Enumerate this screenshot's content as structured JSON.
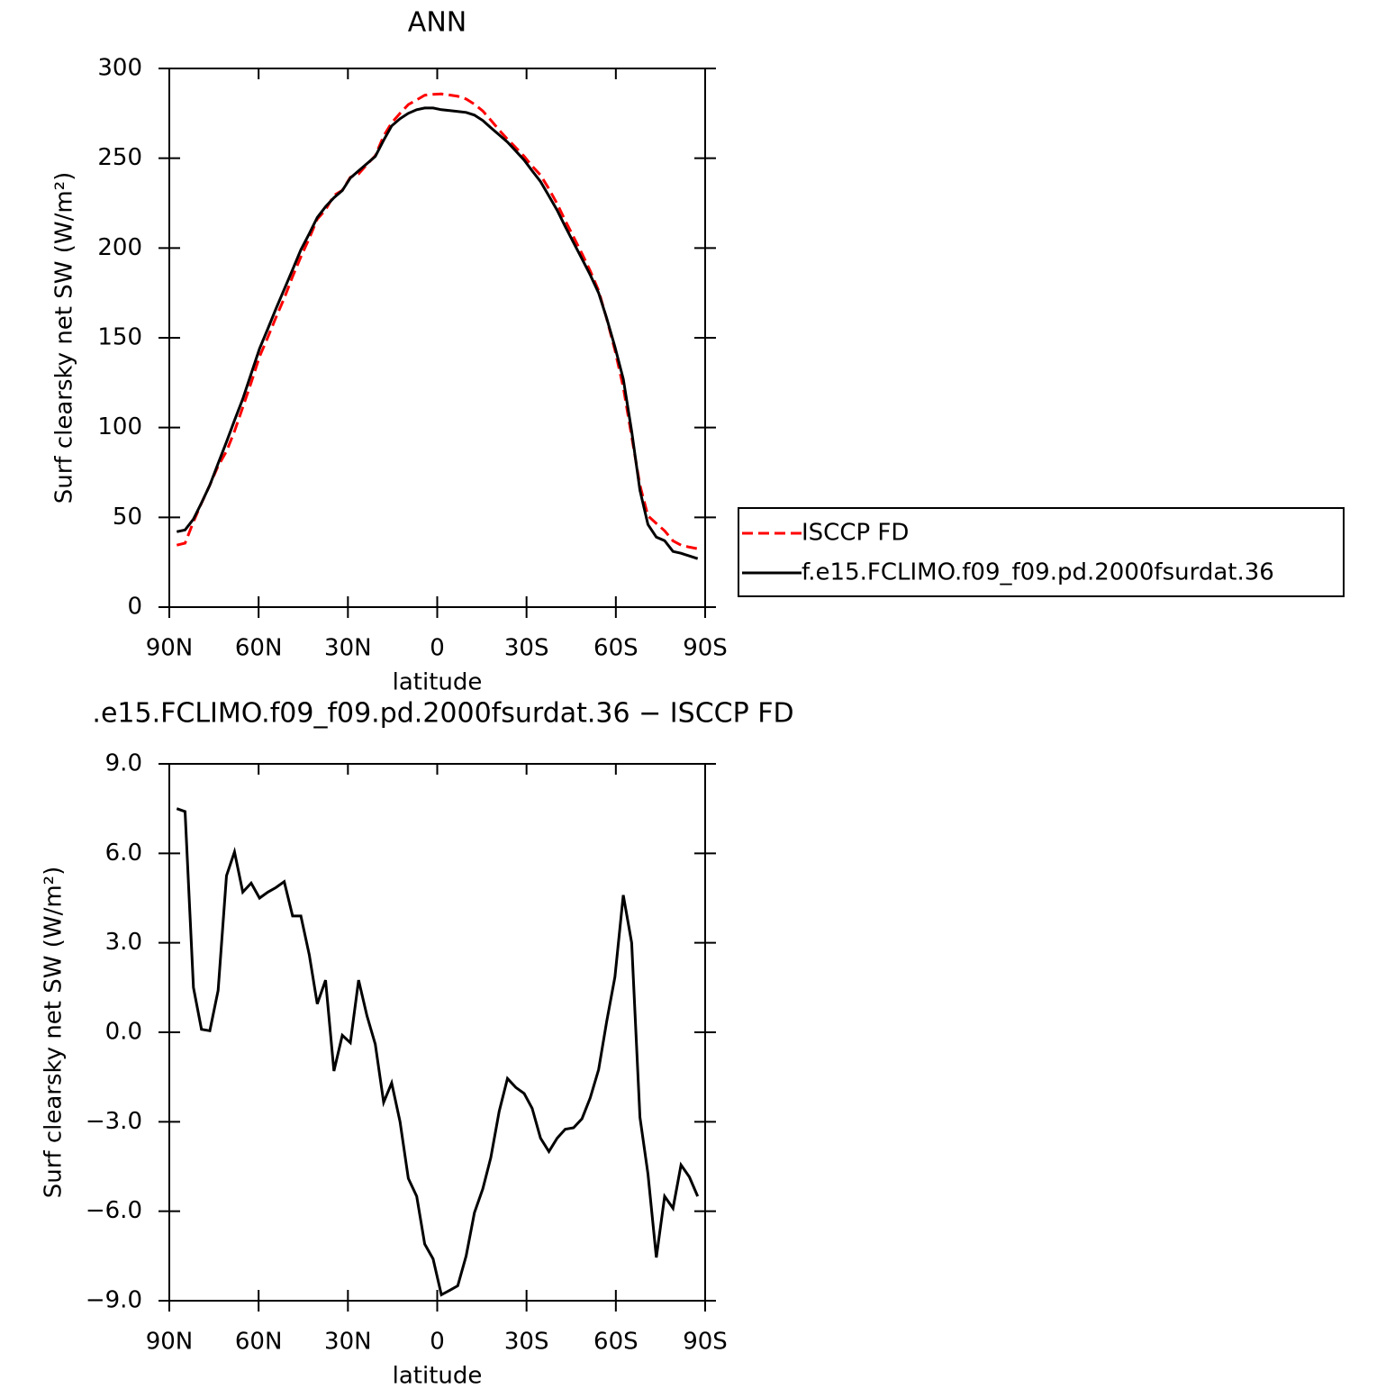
{
  "chart_data": [
    {
      "type": "line",
      "title": "ANN",
      "xlabel": "latitude",
      "ylabel": "Surf clearsky net SW (W/m²)",
      "x": [
        87.5,
        84.7,
        81.9,
        79.2,
        76.4,
        73.6,
        70.8,
        68.1,
        65.3,
        62.5,
        59.7,
        56.9,
        54.2,
        51.4,
        48.6,
        45.8,
        43.0,
        40.3,
        37.5,
        34.7,
        31.9,
        29.2,
        26.4,
        23.6,
        20.8,
        18.0,
        15.3,
        12.5,
        9.7,
        6.9,
        4.2,
        1.4,
        -1.4,
        -4.2,
        -6.9,
        -9.7,
        -12.5,
        -15.3,
        -18.0,
        -20.8,
        -23.6,
        -26.4,
        -29.2,
        -31.9,
        -34.7,
        -37.5,
        -40.3,
        -43.0,
        -45.8,
        -48.6,
        -51.4,
        -54.2,
        -56.9,
        -59.7,
        -62.5,
        -65.3,
        -68.1,
        -70.8,
        -73.6,
        -76.4,
        -79.2,
        -81.9,
        -84.7,
        -87.5
      ],
      "series": [
        {
          "name": "ISCCP FD",
          "color": "#ff0000",
          "dashed": true,
          "values": [
            34.5,
            35.6,
            47.5,
            57.9,
            68.0,
            78.6,
            86.8,
            98.0,
            111.3,
            125.0,
            139.5,
            150.3,
            161.2,
            172.0,
            184.1,
            195.1,
            205.4,
            216.1,
            221.3,
            229.3,
            232.1,
            239.4,
            241.3,
            246.5,
            251.4,
            262.4,
            269.7,
            275.0,
            279.9,
            282.5,
            285.1,
            285.6,
            285.8,
            285.2,
            284.5,
            283.0,
            280.1,
            276.3,
            271.2,
            265.7,
            260.6,
            255.9,
            251.1,
            245.6,
            240.6,
            233.0,
            224.6,
            215.3,
            206.2,
            196.9,
            187.2,
            176.3,
            160.7,
            143.2,
            122.4,
            95.0,
            67.9,
            50.8,
            46.6,
            42.5,
            36.9,
            34.5,
            33.4,
            32.5
          ]
        },
        {
          "name": "f.e15.FCLIMO.f09_f09.pd.2000fsurdat.36",
          "color": "#000000",
          "dashed": false,
          "values": [
            42,
            43,
            49,
            58,
            68,
            80,
            92,
            104,
            116,
            130,
            144,
            155,
            166,
            177,
            188,
            199,
            208,
            217,
            223,
            228,
            232,
            239,
            243,
            247,
            251,
            260,
            268,
            272,
            275,
            277,
            278,
            278,
            277,
            276.5,
            276,
            275.5,
            274,
            271,
            267,
            263,
            259,
            254,
            249,
            243,
            237,
            229,
            221,
            212,
            203,
            194,
            185,
            175,
            161,
            145,
            127,
            98,
            65,
            46,
            39,
            37,
            31,
            30,
            28.5,
            27
          ]
        }
      ],
      "xlim": [
        90,
        -90
      ],
      "xticks": [
        {
          "value": 90,
          "label": "90N"
        },
        {
          "value": 60,
          "label": "60N"
        },
        {
          "value": 30,
          "label": "30N"
        },
        0,
        {
          "value": -30,
          "label": "30S"
        },
        {
          "value": -60,
          "label": "60S"
        },
        {
          "value": -90,
          "label": "90S"
        }
      ],
      "ylim": [
        0,
        300
      ],
      "yticks": [
        0,
        50,
        100,
        150,
        200,
        250,
        300
      ],
      "legend": "right"
    },
    {
      "type": "line",
      "title": ".e15.FCLIMO.f09_f09.pd.2000fsurdat.36 − ISCCP FD",
      "xlabel": "latitude",
      "ylabel": "Surf clearsky net SW (W/m²)",
      "x": [
        87.5,
        84.7,
        81.9,
        79.2,
        76.4,
        73.6,
        70.8,
        68.1,
        65.3,
        62.5,
        59.7,
        56.9,
        54.2,
        51.4,
        48.6,
        45.8,
        43.0,
        40.3,
        37.5,
        34.7,
        31.9,
        29.2,
        26.4,
        23.6,
        20.8,
        18.0,
        15.3,
        12.5,
        9.7,
        6.9,
        4.2,
        1.4,
        -1.4,
        -4.2,
        -6.9,
        -9.7,
        -12.5,
        -15.3,
        -18.0,
        -20.8,
        -23.6,
        -26.4,
        -29.2,
        -31.9,
        -34.7,
        -37.5,
        -40.3,
        -43.0,
        -45.8,
        -48.6,
        -51.4,
        -54.2,
        -56.9,
        -59.7,
        -62.5,
        -65.3,
        -68.1,
        -70.8,
        -73.6,
        -76.4,
        -79.2,
        -81.9,
        -84.7,
        -87.5
      ],
      "series": [
        {
          "color": "#000000",
          "dashed": false,
          "values": [
            7.5,
            7.4,
            1.5,
            0.1,
            0.05,
            1.4,
            5.25,
            6.05,
            4.7,
            5.0,
            4.5,
            4.7,
            4.85,
            5.05,
            3.9,
            3.9,
            2.6,
            0.95,
            1.75,
            -1.3,
            -0.1,
            -0.35,
            1.75,
            0.55,
            -0.4,
            -2.35,
            -1.7,
            -3.0,
            -4.9,
            -5.5,
            -7.1,
            -7.6,
            -8.8,
            -8.65,
            -8.5,
            -7.5,
            -6.05,
            -5.25,
            -4.2,
            -2.65,
            -1.55,
            -1.85,
            -2.05,
            -2.55,
            -3.55,
            -4.0,
            -3.55,
            -3.25,
            -3.2,
            -2.9,
            -2.2,
            -1.25,
            0.35,
            1.85,
            4.6,
            3.0,
            -2.85,
            -4.75,
            -7.55,
            -5.5,
            -5.9,
            -4.45,
            -4.85,
            -5.5
          ]
        }
      ],
      "xlim": [
        90,
        -90
      ],
      "xticks": [
        {
          "value": 90,
          "label": "90N"
        },
        {
          "value": 60,
          "label": "60N"
        },
        {
          "value": 30,
          "label": "30N"
        },
        0,
        {
          "value": -30,
          "label": "30S"
        },
        {
          "value": -60,
          "label": "60S"
        },
        {
          "value": -90,
          "label": "90S"
        }
      ],
      "ylim": [
        -9,
        9
      ],
      "yticks": [
        {
          "value": -9,
          "label": "−9.0"
        },
        {
          "value": -6,
          "label": "−6.0"
        },
        {
          "value": -3,
          "label": "−3.0"
        },
        {
          "value": 0,
          "label": "0.0"
        },
        {
          "value": 3,
          "label": "3.0"
        },
        {
          "value": 6,
          "label": "6.0"
        },
        {
          "value": 9,
          "label": "9.0"
        }
      ]
    }
  ]
}
